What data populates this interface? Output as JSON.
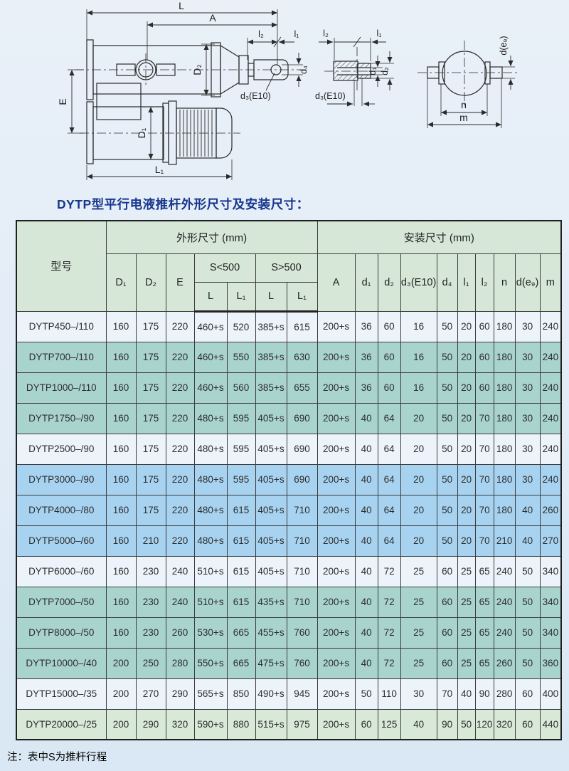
{
  "page": {
    "title": "DYTP型平行电液推杆外形尺寸及安装尺寸：",
    "note": "注：表中S为推杆行程"
  },
  "drawing": {
    "view_main": {
      "L": "L",
      "A": "A",
      "l2": "l₂",
      "l1": "l₁",
      "D2": "D₂",
      "d4": "d₄",
      "d3": "d₃(E10)",
      "E": "E",
      "D1": "D₁",
      "L1": "L₁"
    },
    "view_rod_end": {
      "l2": "l₂",
      "l1": "l₁",
      "d1": "d₁",
      "d2": "d₂",
      "d3": "d₃(E10)"
    },
    "view_trunnion": {
      "d_e9": "d(e₉)",
      "n": "n",
      "m": "m"
    }
  },
  "table": {
    "col_model": "型号",
    "group_outline": "外形尺寸  (mm)",
    "group_install": "安装尺寸  (mm)",
    "sub": {
      "D1": "D₁",
      "D2": "D₂",
      "E": "E",
      "s_lt": "S<500",
      "s_gt": "S>500",
      "L": "L",
      "L1": "L₁",
      "A": "A",
      "d1": "d₁",
      "d2": "d₂",
      "d3": "d₃(E10)",
      "d4": "d₄",
      "l1": "l₁",
      "l2": "l₂",
      "n": "n",
      "de9": "d(e₉)",
      "m": "m"
    },
    "rows": [
      {
        "model": "DYTP450–/110",
        "bg": "light",
        "values": [
          "160",
          "175",
          "220",
          "460+s",
          "520",
          "385+s",
          "615",
          "200+s",
          "36",
          "60",
          "16",
          "50",
          "20",
          "60",
          "180",
          "30",
          "240"
        ]
      },
      {
        "model": "DYTP700–/110",
        "bg": "teal",
        "values": [
          "160",
          "175",
          "220",
          "460+s",
          "550",
          "385+s",
          "630",
          "200+s",
          "36",
          "60",
          "16",
          "50",
          "20",
          "60",
          "180",
          "30",
          "240"
        ]
      },
      {
        "model": "DYTP1000–/110",
        "bg": "teal",
        "values": [
          "160",
          "175",
          "220",
          "460+s",
          "560",
          "385+s",
          "655",
          "200+s",
          "36",
          "60",
          "16",
          "50",
          "20",
          "60",
          "180",
          "30",
          "240"
        ]
      },
      {
        "model": "DYTP1750–/90",
        "bg": "teal",
        "values": [
          "160",
          "175",
          "220",
          "480+s",
          "595",
          "405+s",
          "690",
          "200+s",
          "40",
          "64",
          "20",
          "50",
          "20",
          "70",
          "180",
          "30",
          "240"
        ]
      },
      {
        "model": "DYTP2500–/90",
        "bg": "light",
        "values": [
          "160",
          "175",
          "220",
          "480+s",
          "595",
          "405+s",
          "690",
          "200+s",
          "40",
          "64",
          "20",
          "50",
          "20",
          "70",
          "180",
          "30",
          "240"
        ]
      },
      {
        "model": "DYTP3000–/90",
        "bg": "blue",
        "values": [
          "160",
          "175",
          "220",
          "480+s",
          "595",
          "405+s",
          "690",
          "200+s",
          "40",
          "64",
          "20",
          "50",
          "20",
          "70",
          "180",
          "30",
          "240"
        ]
      },
      {
        "model": "DYTP4000–/80",
        "bg": "blue",
        "values": [
          "160",
          "175",
          "220",
          "480+s",
          "615",
          "405+s",
          "710",
          "200+s",
          "40",
          "64",
          "20",
          "50",
          "20",
          "70",
          "180",
          "40",
          "260"
        ]
      },
      {
        "model": "DYTP5000–/60",
        "bg": "blue",
        "values": [
          "160",
          "210",
          "220",
          "480+s",
          "615",
          "405+s",
          "710",
          "200+s",
          "40",
          "64",
          "20",
          "50",
          "20",
          "70",
          "210",
          "40",
          "270"
        ]
      },
      {
        "model": "DYTP6000–/60",
        "bg": "light",
        "values": [
          "160",
          "230",
          "240",
          "510+s",
          "615",
          "405+s",
          "710",
          "200+s",
          "40",
          "72",
          "25",
          "60",
          "25",
          "65",
          "240",
          "50",
          "340"
        ]
      },
      {
        "model": "DYTP7000–/50",
        "bg": "teal",
        "values": [
          "160",
          "230",
          "240",
          "510+s",
          "615",
          "435+s",
          "710",
          "200+s",
          "40",
          "72",
          "25",
          "60",
          "25",
          "65",
          "240",
          "50",
          "340"
        ]
      },
      {
        "model": "DYTP8000–/50",
        "bg": "teal",
        "values": [
          "160",
          "230",
          "260",
          "530+s",
          "665",
          "455+s",
          "760",
          "200+s",
          "40",
          "72",
          "25",
          "60",
          "25",
          "65",
          "240",
          "50",
          "340"
        ]
      },
      {
        "model": "DYTP10000–/40",
        "bg": "teal",
        "values": [
          "200",
          "250",
          "280",
          "550+s",
          "665",
          "475+s",
          "760",
          "200+s",
          "40",
          "72",
          "25",
          "60",
          "25",
          "65",
          "260",
          "50",
          "360"
        ]
      },
      {
        "model": "DYTP15000–/35",
        "bg": "light",
        "values": [
          "200",
          "270",
          "290",
          "565+s",
          "850",
          "490+s",
          "945",
          "200+s",
          "50",
          "110",
          "30",
          "70",
          "40",
          "90",
          "280",
          "60",
          "400"
        ]
      },
      {
        "model": "DYTP20000–/25",
        "bg": "green",
        "values": [
          "200",
          "290",
          "320",
          "590+s",
          "880",
          "515+s",
          "975",
          "200+s",
          "60",
          "125",
          "40",
          "90",
          "50",
          "120",
          "320",
          "60",
          "440"
        ]
      }
    ]
  }
}
